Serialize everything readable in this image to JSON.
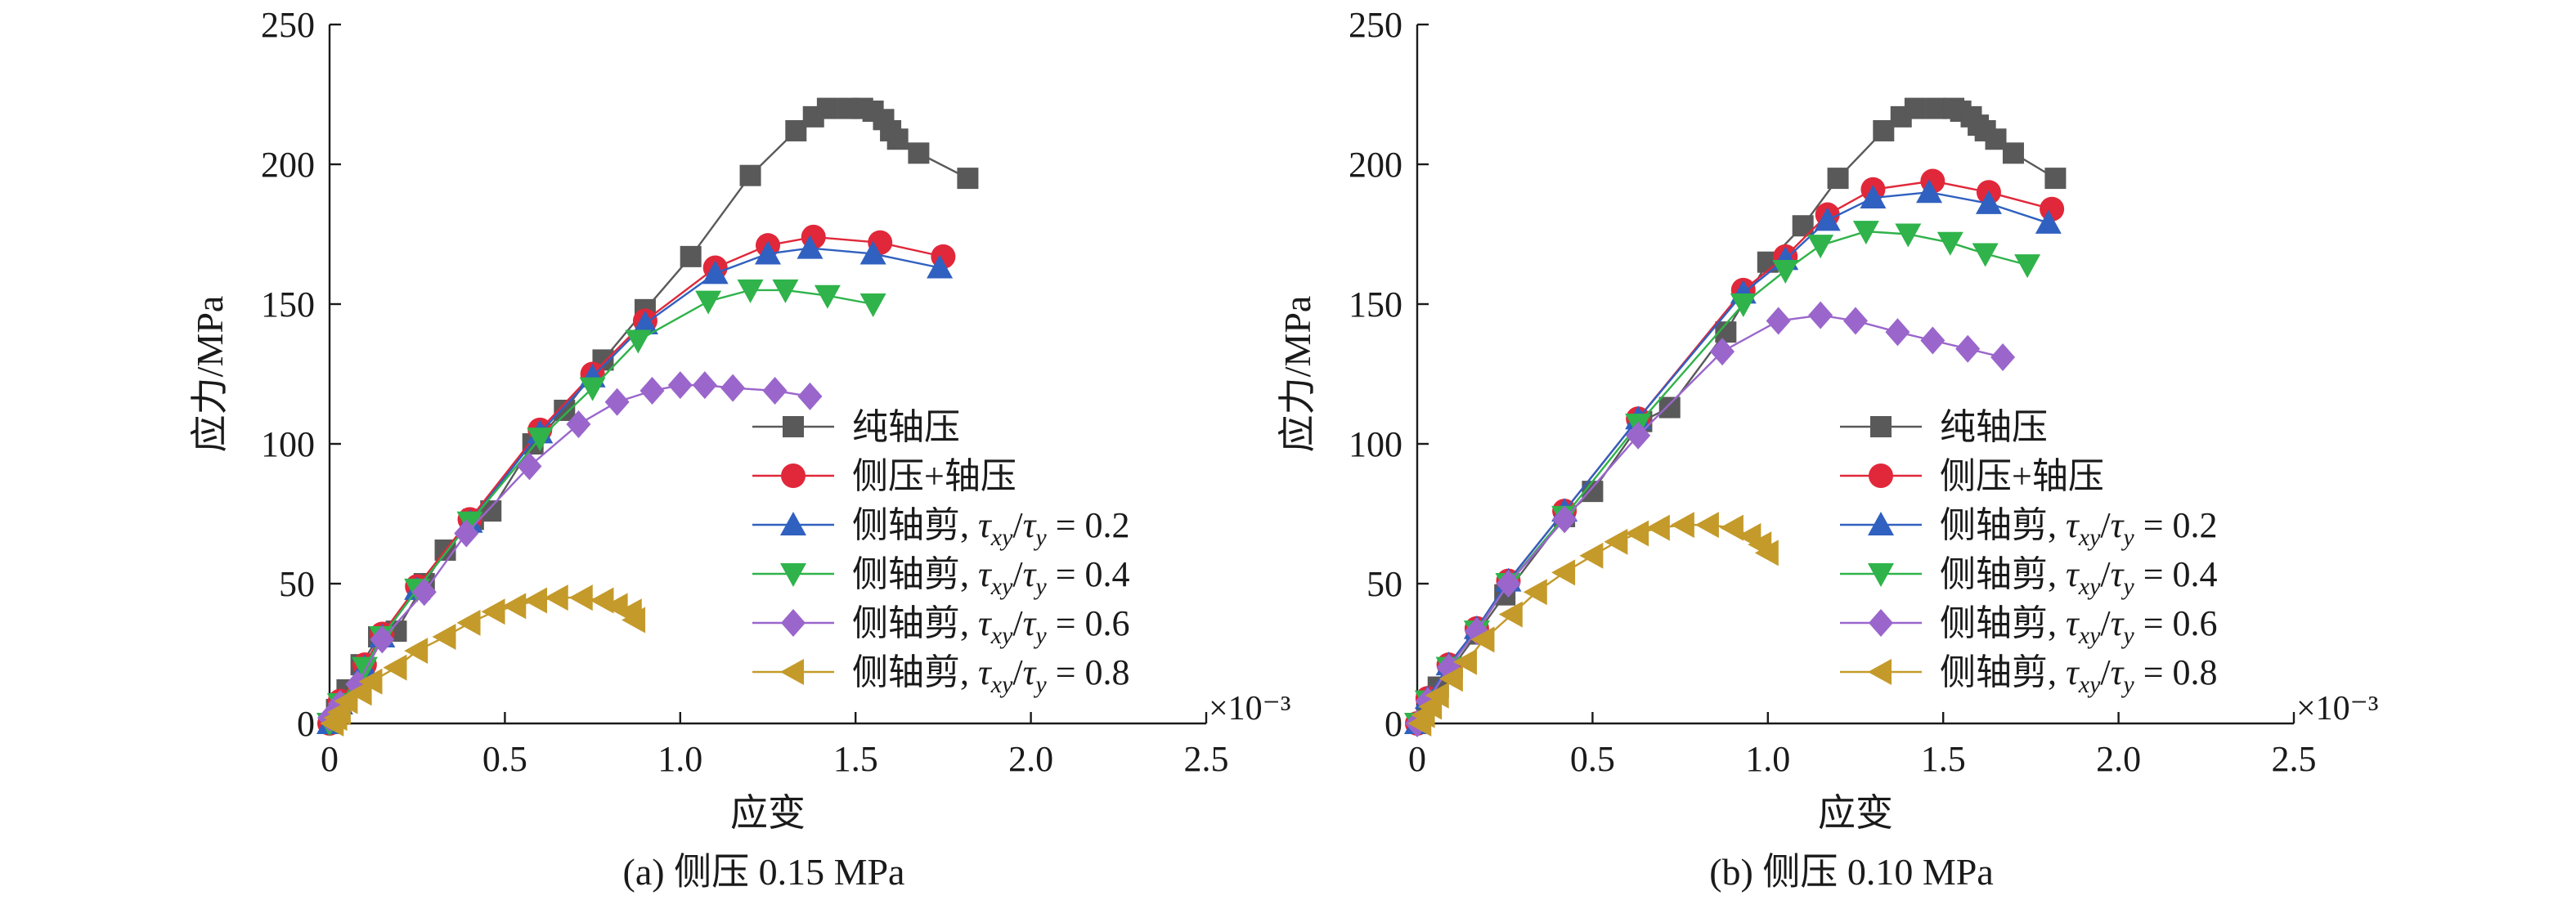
{
  "chart_data": [
    {
      "type": "line",
      "caption": "(a) 侧压 0.15 MPa",
      "xlabel": "应变",
      "ylabel": "应力/MPa",
      "x_multiplier": "×10⁻³",
      "xlim": [
        0,
        2.5
      ],
      "ylim": [
        0,
        250
      ],
      "xticks": [
        "0",
        "0.5",
        "1.0",
        "1.5",
        "2.0",
        "2.5"
      ],
      "yticks": [
        "0",
        "50",
        "100",
        "150",
        "200",
        "250"
      ],
      "legend_position": "lower-right",
      "series": [
        {
          "name": "纯轴压",
          "legend_html": "纯轴压",
          "color": "#595959",
          "marker": "square",
          "points": [
            [
              0,
              0
            ],
            [
              0.02,
              5
            ],
            [
              0.05,
              12
            ],
            [
              0.09,
              21
            ],
            [
              0.14,
              31
            ],
            [
              0.19,
              33
            ],
            [
              0.27,
              50
            ],
            [
              0.33,
              62
            ],
            [
              0.41,
              73
            ],
            [
              0.46,
              76
            ],
            [
              0.58,
              100
            ],
            [
              0.67,
              112
            ],
            [
              0.78,
              130
            ],
            [
              0.9,
              148
            ],
            [
              1.03,
              167
            ],
            [
              1.2,
              196
            ],
            [
              1.33,
              212
            ],
            [
              1.38,
              217
            ],
            [
              1.42,
              220
            ],
            [
              1.48,
              220
            ],
            [
              1.52,
              220
            ],
            [
              1.55,
              219
            ],
            [
              1.58,
              216
            ],
            [
              1.6,
              212
            ],
            [
              1.62,
              209
            ],
            [
              1.68,
              204
            ],
            [
              1.82,
              195
            ]
          ]
        },
        {
          "name": "侧压+轴压",
          "legend_html": "侧压+轴压",
          "color": "#e0283a",
          "marker": "circle",
          "points": [
            [
              0,
              0
            ],
            [
              0.03,
              8
            ],
            [
              0.1,
              21
            ],
            [
              0.15,
              32
            ],
            [
              0.25,
              49
            ],
            [
              0.4,
              73
            ],
            [
              0.6,
              105
            ],
            [
              0.75,
              125
            ],
            [
              0.9,
              144
            ],
            [
              1.1,
              163
            ],
            [
              1.25,
              171
            ],
            [
              1.38,
              174
            ],
            [
              1.57,
              172
            ],
            [
              1.75,
              167
            ]
          ]
        },
        {
          "name": "侧轴剪, τxy/τy = 0.2",
          "legend_html": "侧轴剪, <tspan font-style='italic'>τ</tspan><tspan font-style='italic' font-size='30' dy='10'>xy</tspan><tspan dy='-10'>/</tspan><tspan font-style='italic'>τ</tspan><tspan font-style='italic' font-size='30' dy='10'>y</tspan><tspan dy='-10'> = 0.2</tspan>",
          "color": "#3060c0",
          "marker": "triangle-up",
          "points": [
            [
              0,
              0
            ],
            [
              0.03,
              7
            ],
            [
              0.1,
              20
            ],
            [
              0.15,
              31
            ],
            [
              0.25,
              48
            ],
            [
              0.4,
              72
            ],
            [
              0.6,
              104
            ],
            [
              0.75,
              124
            ],
            [
              0.9,
              143
            ],
            [
              1.1,
              161
            ],
            [
              1.25,
              168
            ],
            [
              1.37,
              170
            ],
            [
              1.55,
              168
            ],
            [
              1.74,
              163
            ]
          ]
        },
        {
          "name": "侧轴剪, τxy/τy = 0.4",
          "legend_html": "侧轴剪, <tspan font-style='italic'>τ</tspan><tspan font-style='italic' font-size='30' dy='10'>xy</tspan><tspan dy='-10'>/</tspan><tspan font-style='italic'>τ</tspan><tspan font-style='italic' font-size='30' dy='10'>y</tspan><tspan dy='-10'> = 0.4</tspan>",
          "color": "#2fb34a",
          "marker": "triangle-down",
          "points": [
            [
              0,
              0
            ],
            [
              0.03,
              7
            ],
            [
              0.1,
              20
            ],
            [
              0.15,
              31
            ],
            [
              0.25,
              48
            ],
            [
              0.4,
              72
            ],
            [
              0.6,
              102
            ],
            [
              0.75,
              120
            ],
            [
              0.88,
              137
            ],
            [
              1.08,
              151
            ],
            [
              1.2,
              155
            ],
            [
              1.3,
              155
            ],
            [
              1.42,
              153
            ],
            [
              1.55,
              150
            ]
          ]
        },
        {
          "name": "侧轴剪, τxy/τy = 0.6",
          "legend_html": "侧轴剪, <tspan font-style='italic'>τ</tspan><tspan font-style='italic' font-size='30' dy='10'>xy</tspan><tspan dy='-10'>/</tspan><tspan font-style='italic'>τ</tspan><tspan font-style='italic' font-size='30' dy='10'>y</tspan><tspan dy='-10'> = 0.6</tspan>",
          "color": "#9a66cc",
          "marker": "diamond",
          "points": [
            [
              0,
              2
            ],
            [
              0.03,
              7
            ],
            [
              0.08,
              14
            ],
            [
              0.15,
              30
            ],
            [
              0.27,
              47
            ],
            [
              0.39,
              68
            ],
            [
              0.57,
              92
            ],
            [
              0.71,
              107
            ],
            [
              0.82,
              115
            ],
            [
              0.92,
              119
            ],
            [
              1.0,
              121
            ],
            [
              1.07,
              121
            ],
            [
              1.15,
              120
            ],
            [
              1.27,
              119
            ],
            [
              1.37,
              117
            ]
          ]
        },
        {
          "name": "侧轴剪, τxy/τy = 0.8",
          "legend_html": "侧轴剪, <tspan font-style='italic'>τ</tspan><tspan font-style='italic' font-size='30' dy='10'>xy</tspan><tspan dy='-10'>/</tspan><tspan font-style='italic'>τ</tspan><tspan font-style='italic' font-size='30' dy='10'>y</tspan><tspan dy='-10'> = 0.8</tspan>",
          "color": "#c49a2a",
          "marker": "triangle-left",
          "points": [
            [
              0.01,
              0
            ],
            [
              0.02,
              2
            ],
            [
              0.03,
              4
            ],
            [
              0.05,
              8
            ],
            [
              0.09,
              11
            ],
            [
              0.12,
              15
            ],
            [
              0.19,
              20
            ],
            [
              0.25,
              26
            ],
            [
              0.33,
              31
            ],
            [
              0.4,
              36
            ],
            [
              0.47,
              40
            ],
            [
              0.53,
              42
            ],
            [
              0.59,
              44
            ],
            [
              0.65,
              45
            ],
            [
              0.72,
              45
            ],
            [
              0.78,
              44
            ],
            [
              0.82,
              42
            ],
            [
              0.86,
              40
            ],
            [
              0.87,
              37
            ]
          ]
        }
      ]
    },
    {
      "type": "line",
      "caption": "(b) 侧压 0.10 MPa",
      "xlabel": "应变",
      "ylabel": "应力/MPa",
      "x_multiplier": "×10⁻³",
      "xlim": [
        0,
        2.5
      ],
      "ylim": [
        0,
        250
      ],
      "xticks": [
        "0",
        "0.5",
        "1.0",
        "1.5",
        "2.0",
        "2.5"
      ],
      "yticks": [
        "0",
        "50",
        "100",
        "150",
        "200",
        "250"
      ],
      "legend_position": "lower-right",
      "series": [
        {
          "name": "纯轴压",
          "legend_html": "纯轴压",
          "color": "#595959",
          "marker": "square",
          "points": [
            [
              0,
              0
            ],
            [
              0.03,
              8
            ],
            [
              0.06,
              13
            ],
            [
              0.1,
              20
            ],
            [
              0.17,
              32
            ],
            [
              0.25,
              46
            ],
            [
              0.42,
              74
            ],
            [
              0.5,
              83
            ],
            [
              0.64,
              108
            ],
            [
              0.72,
              113
            ],
            [
              0.88,
              140
            ],
            [
              1.0,
              165
            ],
            [
              1.1,
              178
            ],
            [
              1.2,
              195
            ],
            [
              1.33,
              212
            ],
            [
              1.38,
              217
            ],
            [
              1.42,
              220
            ],
            [
              1.48,
              220
            ],
            [
              1.53,
              220
            ],
            [
              1.55,
              219
            ],
            [
              1.58,
              217
            ],
            [
              1.6,
              214
            ],
            [
              1.62,
              212
            ],
            [
              1.65,
              209
            ],
            [
              1.7,
              204
            ],
            [
              1.82,
              195
            ]
          ]
        },
        {
          "name": "侧压+轴压",
          "legend_html": "侧压+轴压",
          "color": "#e0283a",
          "marker": "circle",
          "points": [
            [
              0,
              0
            ],
            [
              0.03,
              9
            ],
            [
              0.09,
              21
            ],
            [
              0.17,
              34
            ],
            [
              0.26,
              51
            ],
            [
              0.42,
              76
            ],
            [
              0.63,
              109
            ],
            [
              0.93,
              155
            ],
            [
              1.05,
              167
            ],
            [
              1.17,
              182
            ],
            [
              1.3,
              191
            ],
            [
              1.47,
              194
            ],
            [
              1.63,
              190
            ],
            [
              1.81,
              184
            ]
          ]
        },
        {
          "name": "侧轴剪, τxy/τy = 0.2",
          "legend_html": "侧轴剪, <tspan font-style='italic'>τ</tspan><tspan font-style='italic' font-size='30' dy='10'>xy</tspan><tspan dy='-10'>/</tspan><tspan font-style='italic'>τ</tspan><tspan font-style='italic' font-size='30' dy='10'>y</tspan><tspan dy='-10'> = 0.2</tspan>",
          "color": "#3060c0",
          "marker": "triangle-up",
          "points": [
            [
              0,
              0
            ],
            [
              0.03,
              9
            ],
            [
              0.09,
              21
            ],
            [
              0.17,
              34
            ],
            [
              0.26,
              51
            ],
            [
              0.42,
              76
            ],
            [
              0.63,
              109
            ],
            [
              0.93,
              154
            ],
            [
              1.05,
              166
            ],
            [
              1.17,
              180
            ],
            [
              1.3,
              188
            ],
            [
              1.46,
              190
            ],
            [
              1.63,
              186
            ],
            [
              1.8,
              179
            ]
          ]
        },
        {
          "name": "侧轴剪, τxy/τy = 0.4",
          "legend_html": "侧轴剪, <tspan font-style='italic'>τ</tspan><tspan font-style='italic' font-size='30' dy='10'>xy</tspan><tspan dy='-10'>/</tspan><tspan font-style='italic'>τ</tspan><tspan font-style='italic' font-size='30' dy='10'>y</tspan><tspan dy='-10'> = 0.4</tspan>",
          "color": "#2fb34a",
          "marker": "triangle-down",
          "points": [
            [
              0,
              0
            ],
            [
              0.03,
              8
            ],
            [
              0.09,
              20
            ],
            [
              0.17,
              33
            ],
            [
              0.26,
              50
            ],
            [
              0.42,
              74
            ],
            [
              0.63,
              107
            ],
            [
              0.93,
              150
            ],
            [
              1.05,
              162
            ],
            [
              1.15,
              171
            ],
            [
              1.28,
              176
            ],
            [
              1.4,
              175
            ],
            [
              1.52,
              172
            ],
            [
              1.62,
              168
            ],
            [
              1.74,
              164
            ]
          ]
        },
        {
          "name": "侧轴剪, τxy/τy = 0.6",
          "legend_html": "侧轴剪, <tspan font-style='italic'>τ</tspan><tspan font-style='italic' font-size='30' dy='10'>xy</tspan><tspan dy='-10'>/</tspan><tspan font-style='italic'>τ</tspan><tspan font-style='italic' font-size='30' dy='10'>y</tspan><tspan dy='-10'> = 0.6</tspan>",
          "color": "#9a66cc",
          "marker": "diamond",
          "points": [
            [
              0,
              0
            ],
            [
              0.03,
              8
            ],
            [
              0.09,
              20
            ],
            [
              0.17,
              33
            ],
            [
              0.26,
              50
            ],
            [
              0.42,
              73
            ],
            [
              0.63,
              103
            ],
            [
              0.87,
              133
            ],
            [
              1.03,
              144
            ],
            [
              1.15,
              146
            ],
            [
              1.25,
              144
            ],
            [
              1.37,
              140
            ],
            [
              1.47,
              137
            ],
            [
              1.57,
              134
            ],
            [
              1.67,
              131
            ]
          ]
        },
        {
          "name": "侧轴剪, τxy/τy = 0.8",
          "legend_html": "侧轴剪, <tspan font-style='italic'>τ</tspan><tspan font-style='italic' font-size='30' dy='10'>xy</tspan><tspan dy='-10'>/</tspan><tspan font-style='italic'>τ</tspan><tspan font-style='italic' font-size='30' dy='10'>y</tspan><tspan dy='-10'> = 0.8</tspan>",
          "color": "#c49a2a",
          "marker": "triangle-left",
          "points": [
            [
              0.01,
              0
            ],
            [
              0.02,
              3
            ],
            [
              0.04,
              6
            ],
            [
              0.06,
              10
            ],
            [
              0.1,
              16
            ],
            [
              0.14,
              22
            ],
            [
              0.19,
              30
            ],
            [
              0.27,
              39
            ],
            [
              0.34,
              47
            ],
            [
              0.42,
              54
            ],
            [
              0.5,
              60
            ],
            [
              0.57,
              65
            ],
            [
              0.63,
              68
            ],
            [
              0.69,
              70
            ],
            [
              0.76,
              71
            ],
            [
              0.83,
              71
            ],
            [
              0.9,
              70
            ],
            [
              0.95,
              67
            ],
            [
              0.98,
              64
            ],
            [
              1.0,
              61
            ]
          ]
        }
      ]
    }
  ]
}
